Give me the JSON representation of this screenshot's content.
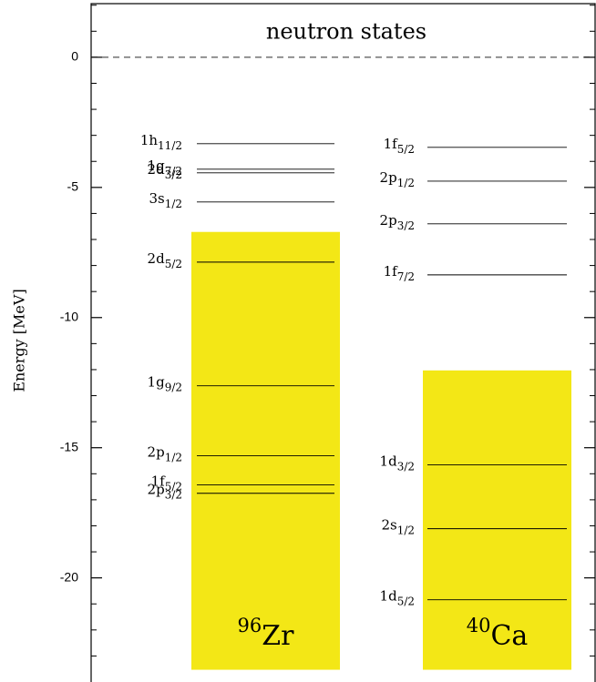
{
  "chart_data": {
    "type": "level",
    "title": "neutron states",
    "ylabel": "Energy [MeV]",
    "ylim": [
      -24,
      2.2
    ],
    "yticks": [
      0,
      -5,
      -10,
      -15,
      -20
    ],
    "minor_yticks": [
      2,
      1,
      -1,
      -2,
      -3,
      -4,
      -6,
      -7,
      -8,
      -9,
      -11,
      -12,
      -13,
      -14,
      -16,
      -17,
      -18,
      -19,
      -21,
      -22,
      -23
    ],
    "reference_line": 0,
    "band_color": "#f3e716",
    "nuclei": [
      {
        "mass": "96",
        "symbol": "Zr",
        "band": [
          -6.71,
          -23.53
        ],
        "levels": [
          {
            "label": "1h",
            "j": "11/2",
            "energy": -3.32
          },
          {
            "label": "1g",
            "j": "7/2",
            "energy": -4.3
          },
          {
            "label": "2d",
            "j": "3/2",
            "energy": -4.44
          },
          {
            "label": "3s",
            "j": "1/2",
            "energy": -5.56
          },
          {
            "label": "2d",
            "j": "5/2",
            "energy": -7.87
          },
          {
            "label": "1g",
            "j": "9/2",
            "energy": -12.62
          },
          {
            "label": "2p",
            "j": "1/2",
            "energy": -15.31
          },
          {
            "label": "1f",
            "j": "5/2",
            "energy": -16.43
          },
          {
            "label": "2p",
            "j": "3/2",
            "energy": -16.75
          }
        ]
      },
      {
        "mass": "40",
        "symbol": "Ca",
        "band": [
          -12.03,
          -23.53
        ],
        "levels": [
          {
            "label": "1f",
            "j": "5/2",
            "energy": -3.46
          },
          {
            "label": "2p",
            "j": "1/2",
            "energy": -4.76
          },
          {
            "label": "2p",
            "j": "3/2",
            "energy": -6.4
          },
          {
            "label": "1f",
            "j": "7/2",
            "energy": -8.36
          },
          {
            "label": "1d",
            "j": "3/2",
            "energy": -15.66
          },
          {
            "label": "2s",
            "j": "1/2",
            "energy": -18.11
          },
          {
            "label": "1d",
            "j": "5/2",
            "energy": -20.84
          }
        ]
      }
    ]
  }
}
